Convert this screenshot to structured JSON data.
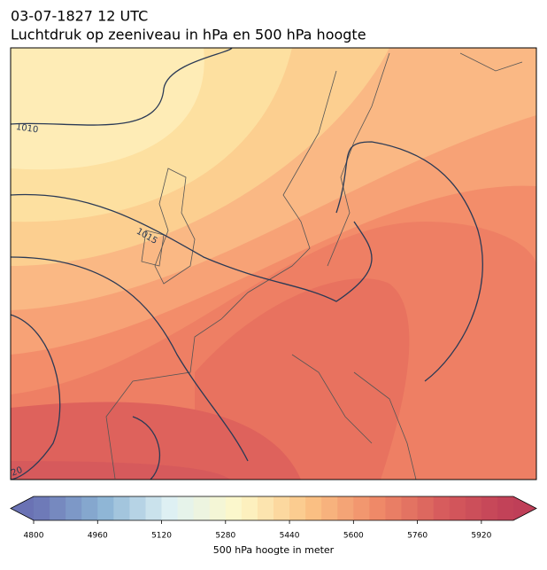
{
  "title": "03-07-1827 12 UTC",
  "subtitle": "Luchtdruk op zeeniveau in hPa en 500 hPa hoogte",
  "isobar_labels": [
    "1010",
    "1015",
    "20"
  ],
  "colorbar": {
    "label": "500 hPa hoogte in meter",
    "range": [
      4800,
      6000
    ],
    "level_step": 40,
    "ticks": [
      4800,
      4960,
      5120,
      5280,
      5440,
      5600,
      5760,
      5920
    ],
    "colors": [
      "#6a72b4",
      "#8bb3d4",
      "#dff1f4",
      "#fdf8c8",
      "#fbc486",
      "#ef8a68",
      "#d65a5c",
      "#bf3f58"
    ]
  }
}
